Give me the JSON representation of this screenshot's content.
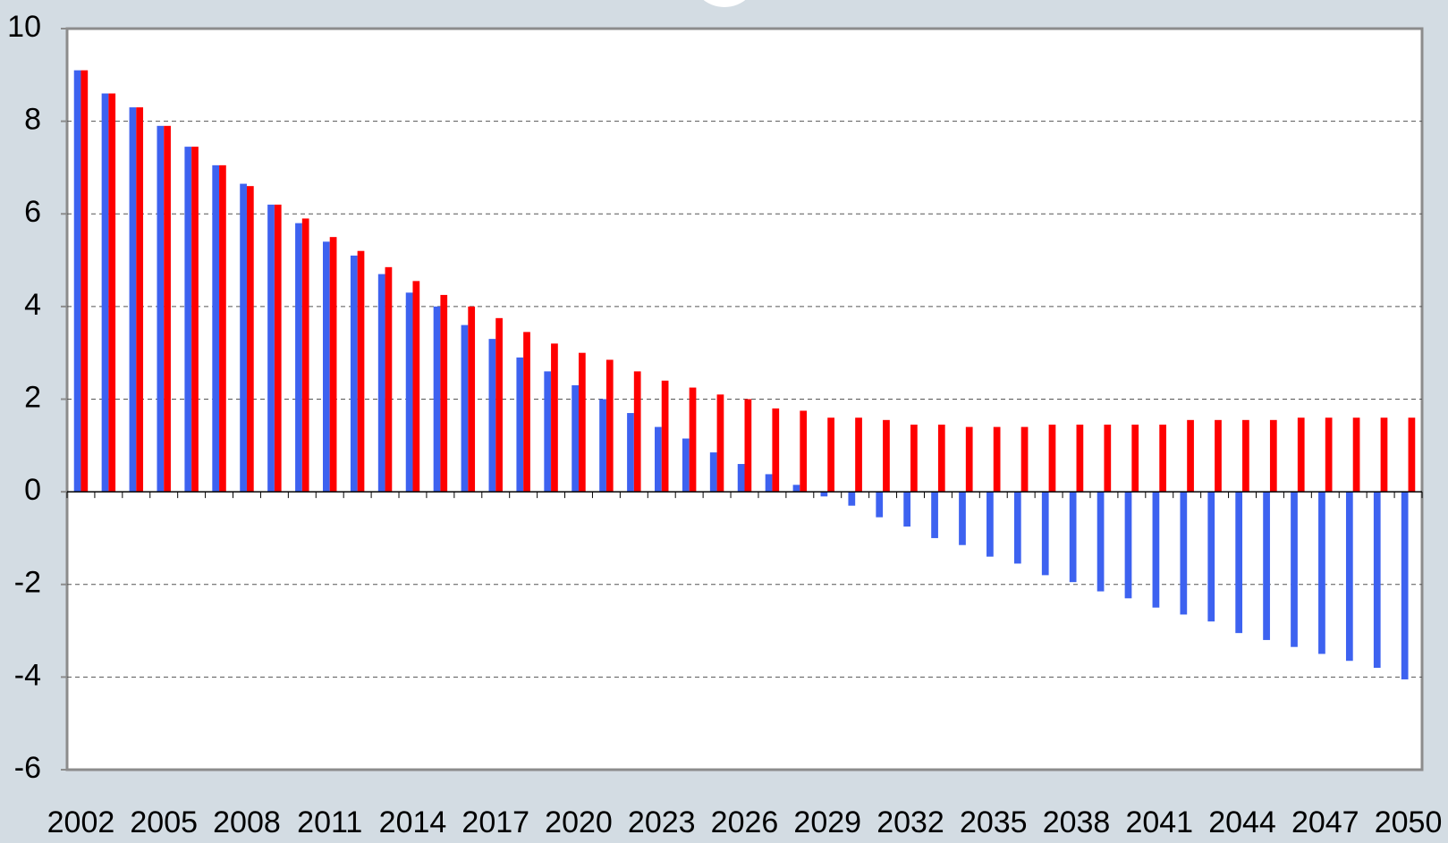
{
  "chart_data": {
    "type": "bar",
    "categories": [
      "2002",
      null,
      null,
      "2005",
      null,
      null,
      "2008",
      null,
      null,
      "2011",
      null,
      null,
      "2014",
      null,
      null,
      "2017",
      null,
      null,
      "2020",
      null,
      null,
      "2023",
      null,
      null,
      "2026",
      null,
      null,
      "2029",
      null,
      null,
      "2032",
      null,
      null,
      "2035",
      null,
      null,
      "2038",
      null,
      null,
      "2041",
      null,
      null,
      "2044",
      null,
      null,
      "2047",
      null,
      null,
      "2050"
    ],
    "series": [
      {
        "color": "#3d62f0",
        "values": [
          9.1,
          8.6,
          8.3,
          7.9,
          7.45,
          7.05,
          6.65,
          6.2,
          5.8,
          5.4,
          5.1,
          4.7,
          4.3,
          4.0,
          3.6,
          3.3,
          2.9,
          2.6,
          2.3,
          2.0,
          1.7,
          1.4,
          1.15,
          0.85,
          0.6,
          0.38,
          0.15,
          -0.1,
          -0.3,
          -0.55,
          -0.75,
          -1.0,
          -1.15,
          -1.4,
          -1.55,
          -1.8,
          -1.95,
          -2.15,
          -2.3,
          -2.5,
          -2.65,
          -2.8,
          -3.05,
          -3.2,
          -3.35,
          -3.5,
          -3.65,
          -3.8,
          -4.05
        ]
      },
      {
        "color": "#ff0000",
        "values": [
          9.1,
          8.6,
          8.3,
          7.9,
          7.45,
          7.05,
          6.6,
          6.2,
          5.9,
          5.5,
          5.2,
          4.85,
          4.55,
          4.25,
          4.0,
          3.75,
          3.45,
          3.2,
          3.0,
          2.85,
          2.6,
          2.4,
          2.25,
          2.1,
          2.0,
          1.8,
          1.75,
          1.6,
          1.6,
          1.55,
          1.45,
          1.45,
          1.4,
          1.4,
          1.4,
          1.45,
          1.45,
          1.45,
          1.45,
          1.45,
          1.55,
          1.55,
          1.55,
          1.55,
          1.6,
          1.6,
          1.6,
          1.6,
          1.6
        ]
      }
    ],
    "ylim": [
      -6,
      10
    ],
    "yticks": [
      -6,
      -4,
      -2,
      0,
      2,
      4,
      6,
      8,
      10
    ],
    "grid": true
  }
}
